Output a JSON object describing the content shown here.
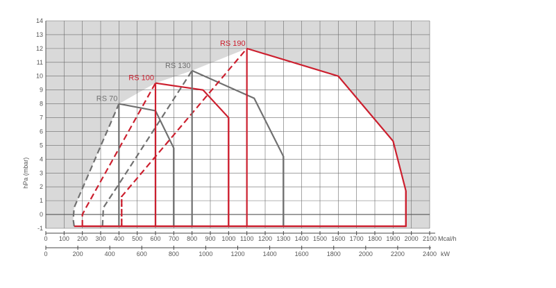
{
  "chart_data": {
    "type": "area",
    "ylabel": "hPa (mbar)",
    "ylim": [
      -1,
      14
    ],
    "yticks": [
      -1,
      0,
      1,
      2,
      3,
      4,
      5,
      6,
      7,
      8,
      9,
      10,
      11,
      12,
      13,
      14
    ],
    "x_primary": {
      "unit": "Mcal/h",
      "range": [
        0,
        2100
      ],
      "ticks": [
        0,
        100,
        200,
        300,
        400,
        500,
        600,
        700,
        800,
        900,
        1000,
        1100,
        1200,
        1300,
        1400,
        1500,
        1600,
        1700,
        1800,
        1900,
        2000,
        2100
      ]
    },
    "x_secondary": {
      "unit": "kW",
      "range": [
        0,
        2400
      ],
      "ticks": [
        0,
        200,
        400,
        600,
        800,
        1000,
        1200,
        1400,
        1600,
        1800,
        2000,
        2200,
        2400
      ]
    },
    "grid": true,
    "series": [
      {
        "name": "RS 70",
        "color": "#707070",
        "dashed": [
          [
            155,
            -0.85
          ],
          [
            150,
            -0.35
          ],
          [
            155,
            0.5
          ],
          [
            400,
            8.0
          ]
        ],
        "solid": [
          [
            400,
            8.0
          ],
          [
            600,
            7.5
          ],
          [
            700,
            4.8
          ],
          [
            700,
            -0.85
          ]
        ],
        "verticals": [
          400,
          600,
          700
        ]
      },
      {
        "name": "RS 100",
        "color": "#cc1f2e",
        "dashed": [
          [
            200,
            -0.85
          ],
          [
            200,
            0.0
          ],
          [
            220,
            0.5
          ],
          [
            600,
            9.5
          ]
        ],
        "solid": [
          [
            600,
            9.5
          ],
          [
            860,
            9.0
          ],
          [
            1000,
            7.0
          ],
          [
            1000,
            -0.85
          ]
        ],
        "verticals": [
          600,
          1000
        ]
      },
      {
        "name": "RS 130",
        "color": "#707070",
        "dashed": [
          [
            310,
            -0.85
          ],
          [
            315,
            0.5
          ],
          [
            400,
            2.2
          ],
          [
            800,
            10.4
          ]
        ],
        "solid": [
          [
            800,
            10.4
          ],
          [
            1140,
            8.4
          ],
          [
            1300,
            4.2
          ],
          [
            1300,
            -0.85
          ]
        ],
        "verticals": [
          800,
          1300
        ]
      },
      {
        "name": "RS 190",
        "color": "#cc1f2e",
        "dashed": [
          [
            415,
            -0.85
          ],
          [
            415,
            1.3
          ],
          [
            1100,
            12.0
          ]
        ],
        "solid": [
          [
            1100,
            12.0
          ],
          [
            1600,
            10.0
          ],
          [
            1900,
            5.3
          ],
          [
            1970,
            1.7
          ],
          [
            1970,
            -0.85
          ],
          [
            200,
            -0.85
          ]
        ],
        "verticals": [
          1100,
          1970
        ]
      }
    ],
    "labels": [
      {
        "text": "RS 70",
        "x": 400,
        "y": 8.0
      },
      {
        "text": "RS 100",
        "x": 600,
        "y": 9.5
      },
      {
        "text": "RS 130",
        "x": 800,
        "y": 10.4
      },
      {
        "text": "RS 190",
        "x": 1100,
        "y": 12.0
      }
    ]
  }
}
